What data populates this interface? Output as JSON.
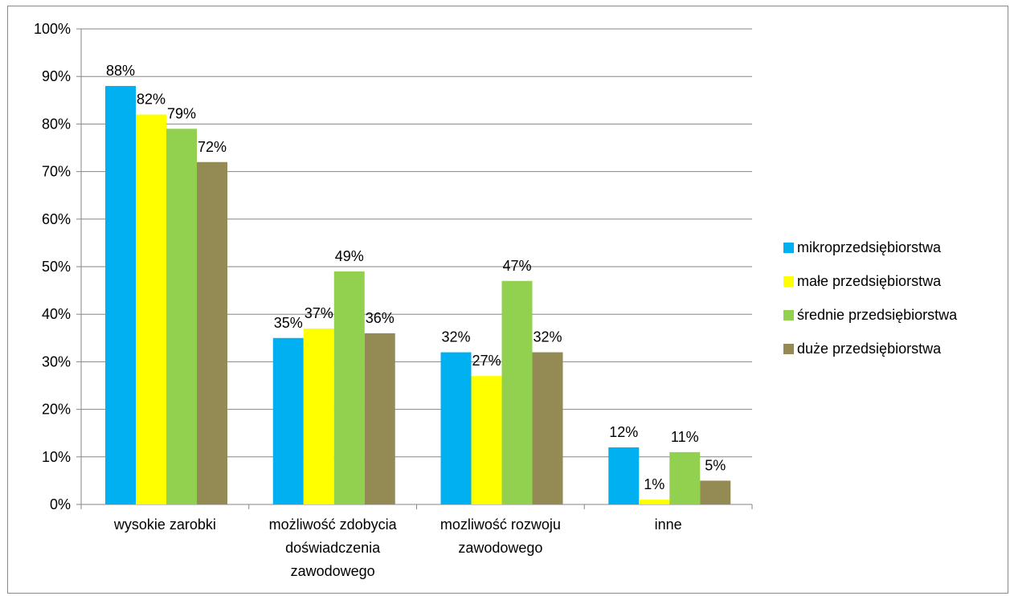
{
  "chart_data": {
    "type": "bar",
    "title": "",
    "xlabel": "",
    "ylabel": "",
    "ylim": [
      0,
      100
    ],
    "y_ticks": [
      "0%",
      "10%",
      "20%",
      "30%",
      "40%",
      "50%",
      "60%",
      "70%",
      "80%",
      "90%",
      "100%"
    ],
    "grid": true,
    "legend_position": "right",
    "categories": [
      [
        "wysokie zarobki"
      ],
      [
        "możliwość zdobycia",
        "doświadczenia",
        "zawodowego"
      ],
      [
        "mozliwość rozwoju",
        "zawodowego"
      ],
      [
        "inne"
      ]
    ],
    "series": [
      {
        "name": "mikroprzedsiębiorstwa",
        "color": "#00b0f0",
        "values": [
          88,
          35,
          32,
          12
        ],
        "labels": [
          "88%",
          "35%",
          "32%",
          "12%"
        ]
      },
      {
        "name": "małe przedsiębiorstwa",
        "color": "#ffff00",
        "values": [
          82,
          37,
          27,
          1
        ],
        "labels": [
          "82%",
          "37%",
          "27%",
          "1%"
        ]
      },
      {
        "name": "średnie przedsiębiorstwa",
        "color": "#92d050",
        "values": [
          79,
          49,
          47,
          11
        ],
        "labels": [
          "79%",
          "49%",
          "47%",
          "11%"
        ]
      },
      {
        "name": "duże przedsiębiorstwa",
        "color": "#948a54",
        "values": [
          72,
          36,
          32,
          5
        ],
        "labels": [
          "72%",
          "36%",
          "32%",
          "5%"
        ]
      }
    ]
  }
}
